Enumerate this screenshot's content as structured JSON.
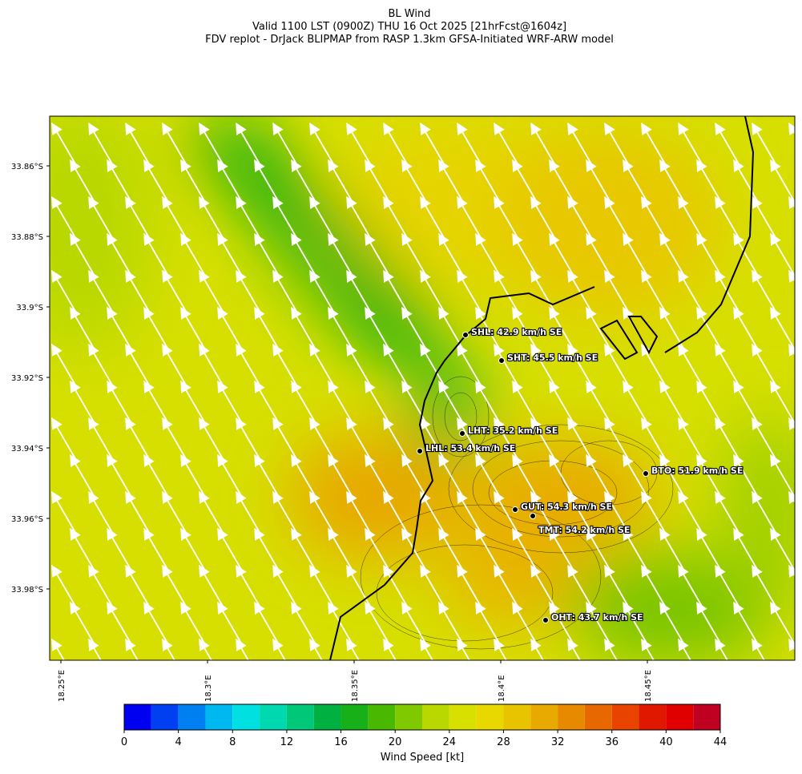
{
  "title": [
    "BL Wind",
    "Valid 1100 LST (0900Z) THU 16 Oct 2025 [21hrFcst@1604z]",
    "FDV replot - DrJack BLIPMAP from RASP 1.3km GFSA-Initiated WRF-ARW model"
  ],
  "lat_ticks": [
    "33.86°S",
    "33.88°S",
    "33.9°S",
    "33.92°S",
    "33.94°S",
    "33.96°S",
    "33.98°S"
  ],
  "lon_ticks": [
    "18.25°E",
    "18.3°E",
    "18.35°E",
    "18.4°E",
    "18.45°E"
  ],
  "stations": [
    "SHL: 42.9 km/h SE",
    "SHT: 45.5 km/h SE",
    "LHT: 35.2 km/h SE",
    "LHL: 53.4 km/h SE",
    "BTO: 51.9 km/h SE",
    "GUT: 54.3 km/h SE",
    "TMT: 54.2 km/h SE",
    "OHT: 43.7 km/h SE"
  ],
  "colorbar": {
    "label": "Wind Speed [kt]",
    "bounds": [
      0,
      2,
      4,
      6,
      8,
      10,
      12,
      14,
      16,
      18,
      20,
      22,
      24,
      26,
      28,
      30,
      32,
      34,
      36,
      38,
      40,
      42,
      44
    ],
    "colors": [
      "#0000f0",
      "#0040f0",
      "#0080f0",
      "#00b8f0",
      "#00e0e0",
      "#00d8b0",
      "#00c878",
      "#00b040",
      "#18b018",
      "#48b800",
      "#80c800",
      "#b8d800",
      "#d8e000",
      "#e8d800",
      "#e8c400",
      "#e8aa00",
      "#e88a00",
      "#e86800",
      "#e84400",
      "#e01800",
      "#e00000",
      "#c00020"
    ],
    "ticks": [
      0,
      4,
      8,
      12,
      16,
      20,
      24,
      28,
      32,
      36,
      40,
      44
    ]
  }
}
